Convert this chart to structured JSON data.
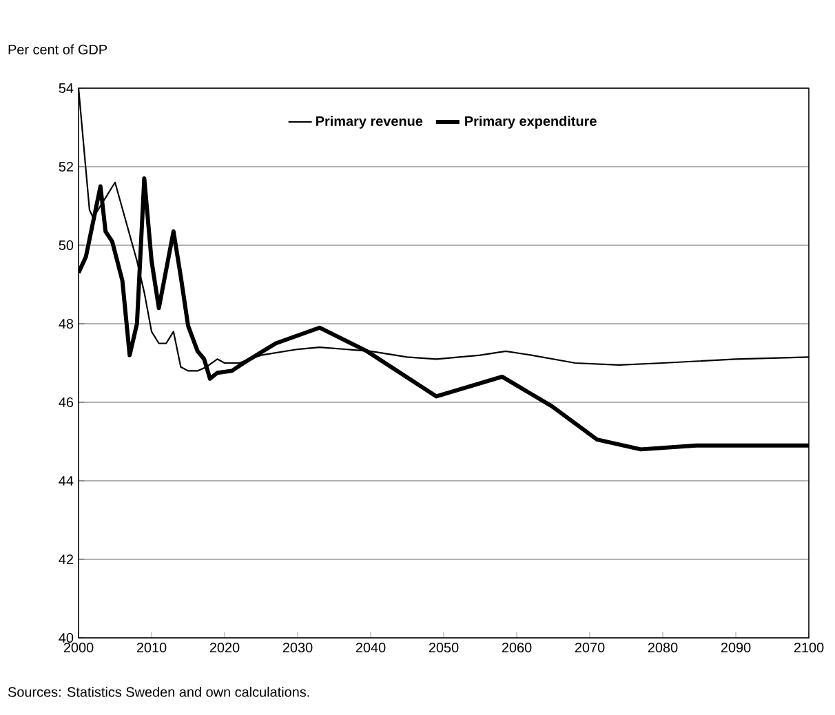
{
  "chart_data": {
    "type": "line",
    "ylabel": "Per cent of GDP",
    "annotations": [
      "Sources: Statistics Sweden and own calculations."
    ],
    "xlim": [
      2000,
      2100
    ],
    "xticks": [
      2000,
      2010,
      2020,
      2030,
      2040,
      2050,
      2060,
      2070,
      2080,
      2090,
      2100
    ],
    "ylim": [
      40,
      54
    ],
    "yticks": [
      40,
      42,
      44,
      46,
      48,
      50,
      52,
      54
    ],
    "grid": "y",
    "legend": "top",
    "marker": "none",
    "line_style": "solid",
    "series": [
      {
        "name": "Primary revenue",
        "color": "#000000",
        "x": [
          2000,
          2001.5,
          2002,
          2005,
          2008,
          2009,
          2010,
          2011,
          2012,
          2013,
          2014,
          2015,
          2016.3,
          2017.5,
          2019,
          2020,
          2022,
          2025,
          2030,
          2033,
          2040,
          2045,
          2049,
          2055,
          2058.5,
          2062,
          2068,
          2074,
          2080,
          2090,
          2100
        ],
        "values": [
          54,
          50.9,
          50.7,
          51.6,
          49.6,
          48.8,
          47.8,
          47.5,
          47.5,
          47.8,
          46.9,
          46.8,
          46.8,
          46.9,
          47.1,
          47.0,
          47.0,
          47.2,
          47.35,
          47.4,
          47.3,
          47.15,
          47.1,
          47.2,
          47.3,
          47.2,
          47.0,
          46.95,
          47.0,
          47.1,
          47.15
        ]
      },
      {
        "name": "Primary expenditure",
        "color": "#000000",
        "x": [
          2000,
          2001,
          2003,
          2003.7,
          2004.6,
          2006,
          2007,
          2008,
          2009,
          2010,
          2011,
          2013,
          2014,
          2015,
          2016.3,
          2017.2,
          2018,
          2019,
          2021,
          2022.6,
          2027,
          2033,
          2039.5,
          2049,
          2058,
          2064.8,
          2071,
          2077,
          2084.6,
          2100
        ],
        "values": [
          49.3,
          49.7,
          51.5,
          50.35,
          50.1,
          49.1,
          47.2,
          48.0,
          51.7,
          49.6,
          48.4,
          50.35,
          49.2,
          47.95,
          47.3,
          47.1,
          46.6,
          46.75,
          46.8,
          47.0,
          47.5,
          47.9,
          47.3,
          46.15,
          46.65,
          45.9,
          45.05,
          44.8,
          44.9,
          44.9
        ]
      }
    ]
  }
}
